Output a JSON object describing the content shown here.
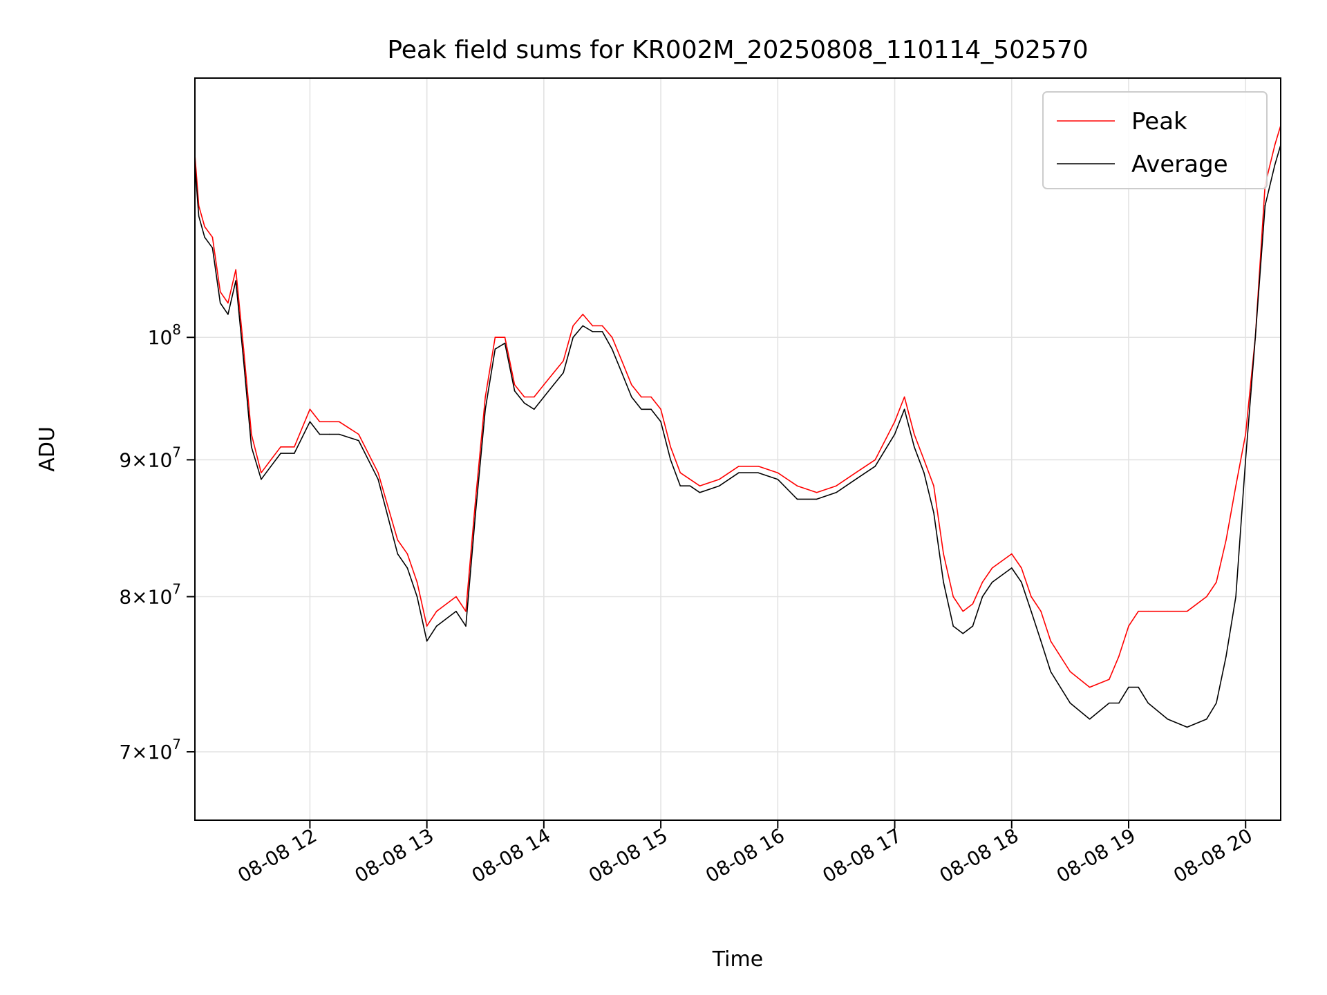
{
  "chart_data": {
    "type": "line",
    "title": "Peak field sums for KR002M_20250808_110114_502570",
    "xlabel": "Time",
    "ylabel": "ADU",
    "x_scale": "time",
    "y_scale": "log",
    "xlim": [
      "2025-08-08 11:01",
      "2025-08-08 20:18"
    ],
    "ylim": [
      66000000,
      125000000
    ],
    "grid": true,
    "legend_position": "top-right",
    "x_ticks": [
      "08-08 12",
      "08-08 13",
      "08-08 14",
      "08-08 15",
      "08-08 16",
      "08-08 17",
      "08-08 18",
      "08-08 19",
      "08-08 20"
    ],
    "y_ticks": [
      {
        "value": 70000000,
        "mantissa": "7",
        "exponent": "7"
      },
      {
        "value": 80000000,
        "mantissa": "8",
        "exponent": "7"
      },
      {
        "value": 90000000,
        "mantissa": "9",
        "exponent": "7"
      },
      {
        "value": 100000000,
        "mantissa": "10",
        "exponent": "8"
      }
    ],
    "times_symbol": "×",
    "series": [
      {
        "name": "Peak",
        "color": "#ff0000",
        "x": [
          "11:01",
          "11:03",
          "11:06",
          "11:10",
          "11:14",
          "11:18",
          "11:22",
          "11:26",
          "11:30",
          "11:35",
          "11:40",
          "11:45",
          "11:52",
          "12:00",
          "12:05",
          "12:10",
          "12:15",
          "12:25",
          "12:35",
          "12:45",
          "12:50",
          "12:55",
          "13:00",
          "13:05",
          "13:15",
          "13:20",
          "13:25",
          "13:30",
          "13:35",
          "13:40",
          "13:45",
          "13:50",
          "13:55",
          "14:00",
          "14:05",
          "14:10",
          "14:15",
          "14:20",
          "14:25",
          "14:30",
          "14:35",
          "14:40",
          "14:45",
          "14:50",
          "14:55",
          "15:00",
          "15:05",
          "15:10",
          "15:15",
          "15:20",
          "15:30",
          "15:40",
          "15:50",
          "16:00",
          "16:10",
          "16:20",
          "16:30",
          "16:40",
          "16:50",
          "17:00",
          "17:05",
          "17:10",
          "17:15",
          "17:20",
          "17:25",
          "17:30",
          "17:35",
          "17:40",
          "17:45",
          "17:50",
          "18:00",
          "18:05",
          "18:10",
          "18:15",
          "18:20",
          "18:30",
          "18:40",
          "18:50",
          "18:55",
          "19:00",
          "19:05",
          "19:10",
          "19:20",
          "19:30",
          "19:40",
          "19:45",
          "19:50",
          "19:55",
          "20:00",
          "20:05",
          "20:10",
          "20:15",
          "20:18"
        ],
        "y": [
          117000000,
          112000000,
          110000000,
          109000000,
          104000000,
          103000000,
          106000000,
          99000000,
          92000000,
          89000000,
          90000000,
          91000000,
          91000000,
          94000000,
          93000000,
          93000000,
          93000000,
          92000000,
          89000000,
          84000000,
          83000000,
          81000000,
          78000000,
          79000000,
          80000000,
          79000000,
          87000000,
          95000000,
          100000000,
          100000000,
          96000000,
          95000000,
          95000000,
          96000000,
          97000000,
          98000000,
          101000000,
          102000000,
          101000000,
          101000000,
          100000000,
          98000000,
          96000000,
          95000000,
          95000000,
          94000000,
          91000000,
          89000000,
          88500000,
          88000000,
          88500000,
          89500000,
          89500000,
          89000000,
          88000000,
          87500000,
          88000000,
          89000000,
          90000000,
          93000000,
          95000000,
          92000000,
          90000000,
          88000000,
          83000000,
          80000000,
          79000000,
          79500000,
          81000000,
          82000000,
          83000000,
          82000000,
          80000000,
          79000000,
          77000000,
          75000000,
          74000000,
          74500000,
          76000000,
          78000000,
          79000000,
          79000000,
          79000000,
          79000000,
          80000000,
          81000000,
          84000000,
          88000000,
          92000000,
          100000000,
          114000000,
          118000000,
          120000000
        ]
      },
      {
        "name": "Average",
        "color": "#000000",
        "x": [
          "11:01",
          "11:03",
          "11:06",
          "11:10",
          "11:14",
          "11:18",
          "11:22",
          "11:26",
          "11:30",
          "11:35",
          "11:40",
          "11:45",
          "11:52",
          "12:00",
          "12:05",
          "12:10",
          "12:15",
          "12:25",
          "12:35",
          "12:45",
          "12:50",
          "12:55",
          "13:00",
          "13:05",
          "13:15",
          "13:20",
          "13:25",
          "13:30",
          "13:35",
          "13:40",
          "13:45",
          "13:50",
          "13:55",
          "14:00",
          "14:05",
          "14:10",
          "14:15",
          "14:20",
          "14:25",
          "14:30",
          "14:35",
          "14:40",
          "14:45",
          "14:50",
          "14:55",
          "15:00",
          "15:05",
          "15:10",
          "15:15",
          "15:20",
          "15:30",
          "15:40",
          "15:50",
          "16:00",
          "16:10",
          "16:20",
          "16:30",
          "16:40",
          "16:50",
          "17:00",
          "17:05",
          "17:10",
          "17:15",
          "17:20",
          "17:25",
          "17:30",
          "17:35",
          "17:40",
          "17:45",
          "17:50",
          "18:00",
          "18:05",
          "18:10",
          "18:15",
          "18:20",
          "18:30",
          "18:40",
          "18:50",
          "18:55",
          "19:00",
          "19:05",
          "19:10",
          "19:20",
          "19:30",
          "19:40",
          "19:45",
          "19:50",
          "19:55",
          "20:00",
          "20:05",
          "20:10",
          "20:15",
          "20:18"
        ],
        "y": [
          116000000,
          111000000,
          109000000,
          108000000,
          103000000,
          102000000,
          105000000,
          98000000,
          91000000,
          88500000,
          89500000,
          90500000,
          90500000,
          93000000,
          92000000,
          92000000,
          92000000,
          91500000,
          88500000,
          83000000,
          82000000,
          80000000,
          77000000,
          78000000,
          79000000,
          78000000,
          86000000,
          94000000,
          99000000,
          99500000,
          95500000,
          94500000,
          94000000,
          95000000,
          96000000,
          97000000,
          100000000,
          101000000,
          100500000,
          100500000,
          99000000,
          97000000,
          95000000,
          94000000,
          94000000,
          93000000,
          90000000,
          88000000,
          88000000,
          87500000,
          88000000,
          89000000,
          89000000,
          88500000,
          87000000,
          87000000,
          87500000,
          88500000,
          89500000,
          92000000,
          94000000,
          91000000,
          89000000,
          86000000,
          81000000,
          78000000,
          77500000,
          78000000,
          80000000,
          81000000,
          82000000,
          81000000,
          79000000,
          77000000,
          75000000,
          73000000,
          72000000,
          73000000,
          73000000,
          74000000,
          74000000,
          73000000,
          72000000,
          71500000,
          72000000,
          73000000,
          76000000,
          80000000,
          90000000,
          100000000,
          112000000,
          116000000,
          118000000
        ]
      }
    ]
  }
}
